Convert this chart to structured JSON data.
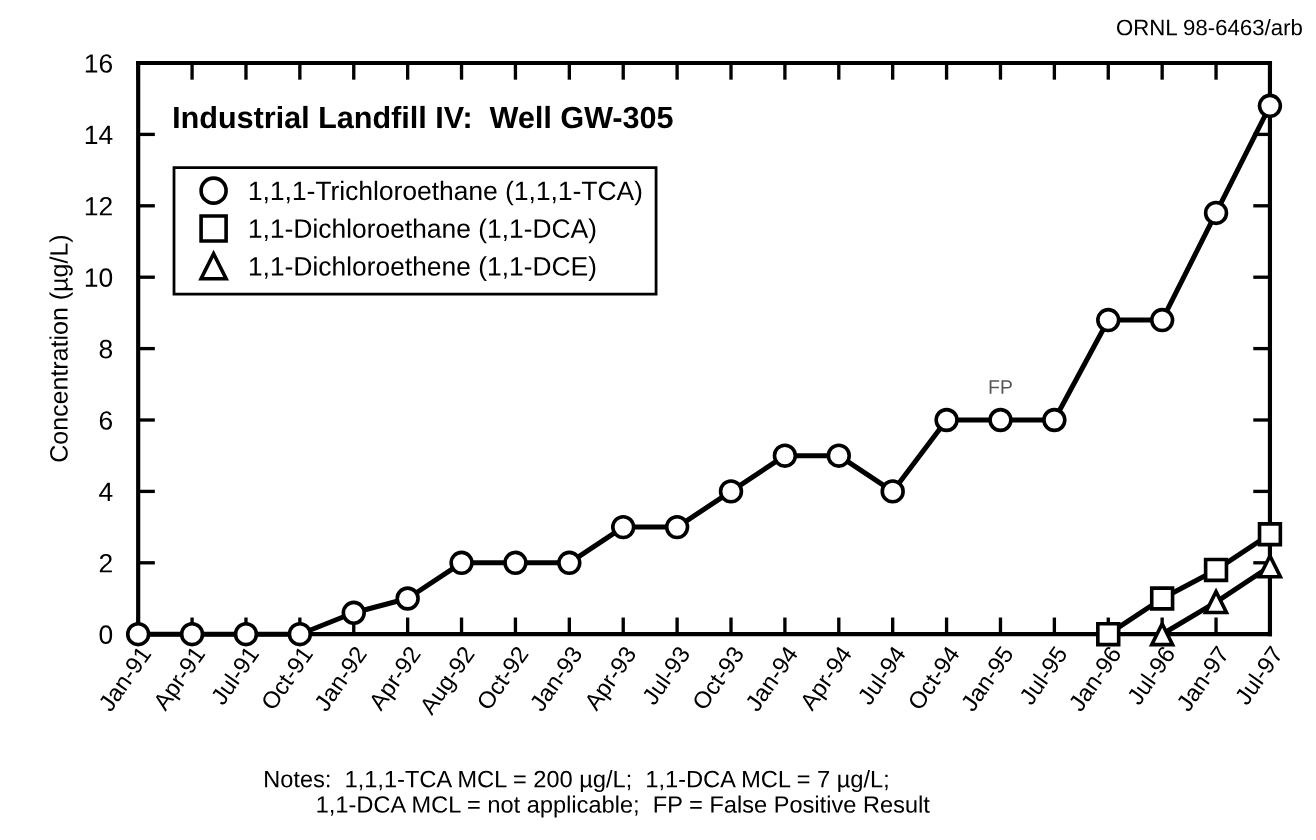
{
  "chart_data": {
    "type": "line",
    "title": "Industrial Landfill IV:  Well GW-305",
    "ylabel": "Concentration (µg/L)",
    "categories": [
      "Jan-91",
      "Apr-91",
      "Jul-91",
      "Oct-91",
      "Jan-92",
      "Apr-92",
      "Aug-92",
      "Oct-92",
      "Jan-93",
      "Apr-93",
      "Jul-93",
      "Oct-93",
      "Jan-94",
      "Apr-94",
      "Jul-94",
      "Oct-94",
      "Jan-95",
      "Jul-95",
      "Jan-96",
      "Jul-96",
      "Jan-97",
      "Jul-97"
    ],
    "series": [
      {
        "name": "1,1,1-Trichloroethane (1,1,1-TCA)",
        "color": "#000000",
        "marker": "circle",
        "values": [
          0,
          0,
          0,
          0,
          0.6,
          1,
          2,
          2,
          2,
          3,
          3,
          4,
          5,
          5,
          4,
          6,
          6,
          6,
          8.8,
          8.8,
          11.8,
          14.8
        ]
      },
      {
        "name": "1,1-Dichloroethane (1,1-DCA)",
        "color": "#000000",
        "marker": "square",
        "values": [
          null,
          null,
          null,
          null,
          null,
          null,
          null,
          null,
          null,
          null,
          null,
          null,
          null,
          null,
          null,
          null,
          null,
          null,
          0,
          1,
          1.8,
          2.8
        ]
      },
      {
        "name": "1,1-Dichloroethene (1,1-DCE)",
        "color": "#000000",
        "marker": "triangle",
        "values": [
          null,
          null,
          null,
          null,
          null,
          null,
          null,
          null,
          null,
          null,
          null,
          null,
          null,
          null,
          null,
          null,
          null,
          null,
          null,
          0,
          0.9,
          1.9
        ]
      }
    ],
    "ylim": [
      0,
      16
    ],
    "yticks": [
      0,
      2,
      4,
      6,
      8,
      10,
      12,
      14,
      16
    ],
    "legend": "top left",
    "annotations": [
      "ORNL 98-6463/arb",
      {
        "text": "FP",
        "x": "Jan-95",
        "y": 6
      },
      "Notes:  1,1,1-TCA MCL = 200 µg/L;  1,1-DCA MCL = 7 µg/L;\n        1,1-DCA MCL = not applicable;  FP = False Positive Result"
    ]
  }
}
